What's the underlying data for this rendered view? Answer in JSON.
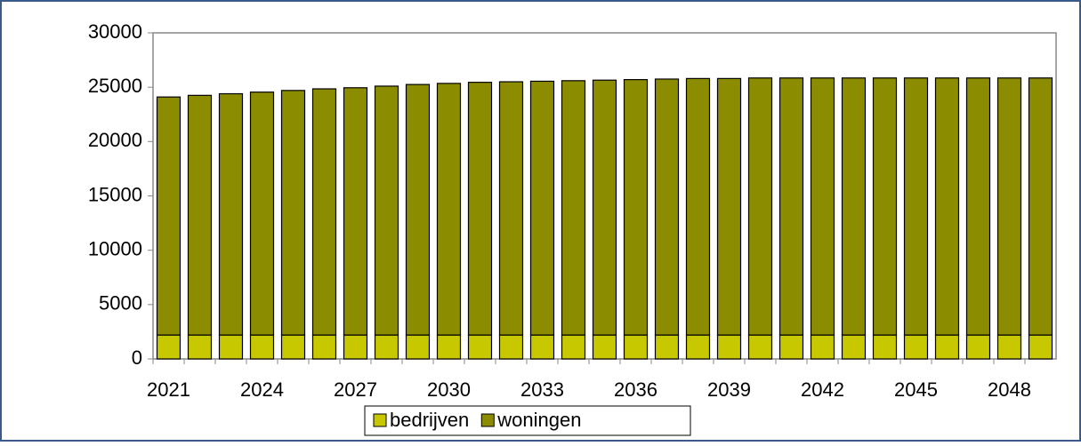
{
  "chart_data": {
    "type": "stacked_bar",
    "categories": [
      "2021",
      null,
      null,
      "2024",
      null,
      null,
      "2027",
      null,
      null,
      "2030",
      null,
      null,
      "2033",
      null,
      null,
      "2036",
      null,
      null,
      "2039",
      null,
      null,
      "2042",
      null,
      null,
      "2045",
      null,
      null,
      "2048",
      null
    ],
    "series": [
      {
        "name": "bedrijven",
        "color": "#c8c800",
        "values": [
          2200,
          2200,
          2200,
          2200,
          2200,
          2200,
          2200,
          2200,
          2200,
          2200,
          2200,
          2200,
          2200,
          2200,
          2200,
          2200,
          2200,
          2200,
          2200,
          2200,
          2200,
          2200,
          2200,
          2200,
          2200,
          2200,
          2200,
          2200,
          2200
        ]
      },
      {
        "name": "woningen",
        "color": "#8c8c00",
        "values": [
          21900,
          22050,
          22200,
          22350,
          22500,
          22650,
          22750,
          22900,
          23050,
          23150,
          23250,
          23300,
          23350,
          23400,
          23450,
          23500,
          23550,
          23600,
          23600,
          23650,
          23650,
          23650,
          23650,
          23650,
          23650,
          23650,
          23650,
          23650,
          23650
        ]
      }
    ],
    "ylim": [
      0,
      30000
    ],
    "yticks": [
      0,
      5000,
      10000,
      15000,
      20000,
      25000,
      30000
    ],
    "legend": "bottom"
  }
}
